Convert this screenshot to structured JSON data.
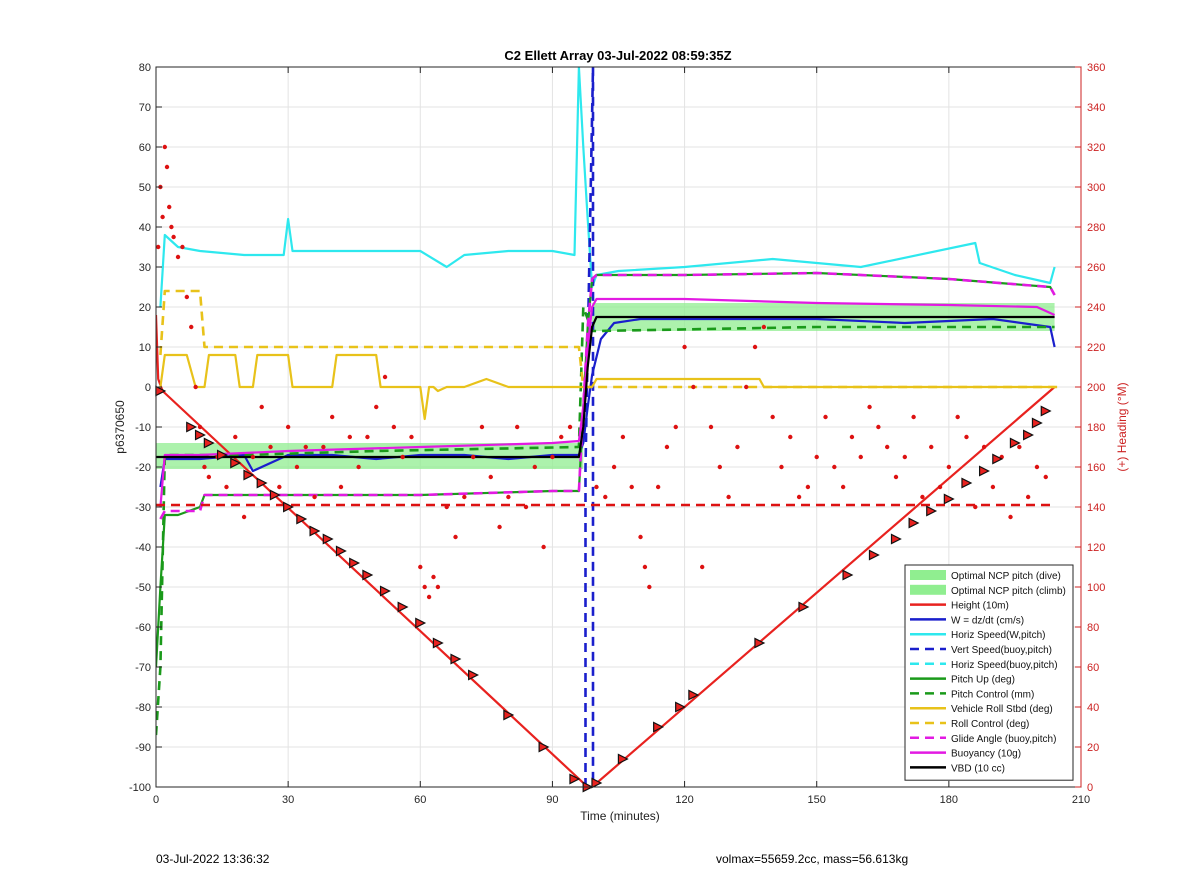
{
  "footer": {
    "timestamp": "03-Jul-2022 13:36:32",
    "stats": "volmax=55659.2cc, mass=56.613kg"
  },
  "chart_data": {
    "type": "line",
    "title": "C2 Ellett Array 03-Jul-2022 08:59:35Z",
    "xlabel": "Time (minutes)",
    "ylabel": "p6370650",
    "y2label": "(+) Heading (°M)",
    "xlim": [
      0,
      210
    ],
    "ylim": [
      -100,
      80
    ],
    "y2lim": [
      0,
      360
    ],
    "xticks": [
      0,
      30,
      60,
      90,
      120,
      150,
      180,
      210
    ],
    "yticks": [
      -100,
      -90,
      -80,
      -70,
      -60,
      -50,
      -40,
      -30,
      -20,
      -10,
      0,
      10,
      20,
      30,
      40,
      50,
      60,
      70,
      80
    ],
    "y2ticks": [
      0,
      20,
      40,
      60,
      80,
      100,
      120,
      140,
      160,
      180,
      200,
      220,
      240,
      260,
      280,
      300,
      320,
      340,
      360
    ],
    "grid": true,
    "legend_position": "bottom-right",
    "colors": {
      "height": "#e8221f",
      "w": "#1a1fcc",
      "horiz": "#2ee8ee",
      "vert": "#1a1fcc",
      "pitch": "#1a9a1a",
      "roll": "#e8c21a",
      "glide": "#e21ae2",
      "buoy": "#e21ae2",
      "vbd": "#000000",
      "heading": "#dd1111",
      "ncp": "#90ee90",
      "right_axis": "#cc2222"
    },
    "series": [
      {
        "name": "Optimal NCP pitch (dive)",
        "style": "band",
        "color": "#90ee90",
        "x": [
          0,
          97
        ],
        "y_low": [
          -20.5,
          -20.5
        ],
        "y_high": [
          -14,
          -14
        ]
      },
      {
        "name": "Optimal NCP pitch (climb)",
        "style": "band",
        "color": "#90ee90",
        "x": [
          99,
          204
        ],
        "y_low": [
          14,
          14
        ],
        "y_high": [
          21,
          21
        ]
      },
      {
        "name": "Height (10m)",
        "style": "solid",
        "color": "#e8221f",
        "x": [
          0,
          0.5,
          1.5,
          98,
          99,
          204
        ],
        "y": [
          18,
          2,
          -1,
          -100,
          -100,
          0
        ]
      },
      {
        "name": "W = dz/dt (cm/s)",
        "style": "solid",
        "color": "#1a1fcc",
        "x": [
          1,
          2,
          5,
          10,
          20,
          22,
          30,
          40,
          50,
          60,
          70,
          80,
          90,
          96,
          97,
          98,
          99,
          101,
          104,
          110,
          130,
          150,
          170,
          190,
          203,
          204
        ],
        "y": [
          -25,
          -18,
          -18,
          -18,
          -17,
          -21,
          -17,
          -17,
          -18,
          -17,
          -17,
          -18,
          -17,
          -17,
          -14,
          -5,
          3,
          12,
          16,
          17,
          17,
          17,
          16,
          17,
          15,
          10
        ]
      },
      {
        "name": "Horiz Speed(W,pitch)",
        "style": "solid",
        "color": "#2ee8ee",
        "x": [
          1,
          2,
          5,
          10,
          20,
          29,
          30,
          31,
          40,
          50,
          60,
          66,
          70,
          80,
          90,
          95,
          96,
          97,
          98,
          99,
          100,
          105,
          120,
          140,
          160,
          186,
          187,
          195,
          203,
          204
        ],
        "y": [
          20,
          38,
          35,
          34,
          33,
          33,
          42,
          34,
          34,
          34,
          34,
          30,
          33,
          34,
          34,
          33,
          80,
          60,
          42,
          25,
          28,
          29,
          30,
          32,
          30,
          36,
          31,
          28,
          26,
          30
        ]
      },
      {
        "name": "Vert Speed(buoy,pitch)",
        "style": "dashed",
        "color": "#1a1fcc",
        "x": [
          97.5,
          97.5,
          99.2,
          99.2
        ],
        "y": [
          -100,
          -20,
          80,
          -100
        ]
      },
      {
        "name": "Horiz Speed(buoy,pitch)",
        "style": "dashed",
        "color": "#2ee8ee",
        "x": [],
        "y": []
      },
      {
        "name": "Pitch Up (deg)",
        "style": "solid",
        "color": "#1a9a1a",
        "x": [
          0,
          1,
          2,
          5,
          10,
          11,
          30,
          60,
          90,
          96,
          97,
          98,
          99,
          100,
          120,
          150,
          180,
          203,
          204
        ],
        "y": [
          -70,
          -50,
          -32,
          -32,
          -30,
          -27,
          -27,
          -27,
          -26,
          -26,
          -5,
          15,
          27,
          28,
          28,
          28.5,
          27,
          25,
          23
        ]
      },
      {
        "name": "Pitch Control (mm)",
        "style": "dashed",
        "color": "#1a9a1a",
        "x": [
          0,
          1,
          2,
          20,
          50,
          96,
          97,
          99,
          100,
          150,
          204
        ],
        "y": [
          -87,
          -70,
          -17,
          -17,
          -16,
          -15,
          20,
          14,
          14,
          15,
          15
        ]
      },
      {
        "name": "Vehicle Roll Stbd (deg)",
        "style": "solid",
        "color": "#e8c21a",
        "x": [
          1,
          2,
          7,
          9,
          11,
          12,
          18,
          19,
          22,
          23,
          30,
          31,
          40,
          41,
          50,
          51,
          55,
          60,
          61,
          62,
          63,
          64,
          66,
          70,
          75,
          80,
          90,
          95,
          97,
          99,
          100,
          110,
          120,
          137,
          138,
          150,
          170,
          204
        ],
        "y": [
          0,
          8,
          8,
          0,
          0,
          8,
          8,
          0,
          0,
          8,
          8,
          0,
          0,
          8,
          8,
          0,
          0,
          0,
          -8,
          0,
          0,
          -1,
          0,
          0,
          2,
          0,
          0,
          0,
          0,
          0,
          2,
          2,
          2,
          2,
          0,
          0,
          0,
          0
        ]
      },
      {
        "name": "Roll Control (deg)",
        "style": "dashed",
        "color": "#e8c21a",
        "x": [
          1,
          2,
          5,
          10,
          11,
          96,
          97,
          110,
          111,
          205
        ],
        "y": [
          8,
          24,
          24,
          24,
          10,
          10,
          0,
          0,
          0,
          0
        ]
      },
      {
        "name": "Glide Angle (buoy,pitch)",
        "style": "dashed",
        "color": "#e21ae2",
        "x": [
          1,
          2,
          5,
          10,
          11,
          30,
          60,
          90,
          96,
          97,
          98,
          99,
          100,
          120,
          150,
          180,
          203,
          204
        ],
        "y": [
          -33,
          -31,
          -31,
          -31,
          -27,
          -27,
          -27,
          -26,
          -26,
          -5,
          15,
          27,
          28,
          28,
          28.5,
          27,
          25,
          23
        ]
      },
      {
        "name": "Buoyancy (10g)",
        "style": "solid",
        "color": "#e21ae2",
        "x": [
          1,
          2,
          10,
          30,
          60,
          90,
          96,
          97,
          98,
          99,
          100,
          120,
          150,
          180,
          200,
          204
        ],
        "y": [
          -30,
          -17,
          -17,
          -16,
          -15,
          -14,
          -13.5,
          -5,
          10,
          20,
          22,
          22,
          21,
          20.5,
          20,
          18
        ]
      },
      {
        "name": "VBD (10 cc)",
        "style": "solid",
        "color": "#000000",
        "x": [
          0,
          1.5,
          1.5,
          96,
          97,
          98,
          99,
          100,
          204
        ],
        "y": [
          -17.5,
          -17.5,
          -17.5,
          -17.5,
          -10,
          5,
          15,
          17.5,
          17.5
        ]
      }
    ],
    "legend_entries": [
      "Optimal NCP pitch (dive)",
      "Optimal NCP pitch (climb)",
      "Height (10m)",
      "W = dz/dt (cm/s)",
      "Horiz Speed(W,pitch)",
      "Vert Speed(buoy,pitch)",
      "Horiz Speed(buoy,pitch)",
      "Pitch Up (deg)",
      "Pitch Control (mm)",
      "Vehicle Roll Stbd (deg)",
      "Roll Control (deg)",
      "Glide Angle (buoy,pitch)",
      "Buoyancy (10g)",
      "VBD (10 cc)"
    ],
    "heading_points": {
      "axis": "right",
      "color": "#dd1111",
      "reference_line": 141,
      "x": [
        0.5,
        1,
        1.5,
        2,
        2.5,
        3,
        3.5,
        4,
        5,
        6,
        7,
        8,
        9,
        10,
        11,
        12,
        14,
        16,
        18,
        20,
        22,
        24,
        26,
        28,
        30,
        32,
        34,
        36,
        38,
        40,
        42,
        44,
        46,
        48,
        50,
        52,
        54,
        56,
        58,
        60,
        61,
        62,
        63,
        64,
        66,
        68,
        70,
        72,
        74,
        76,
        78,
        80,
        82,
        84,
        86,
        88,
        90,
        92,
        94,
        100,
        102,
        104,
        106,
        108,
        110,
        111,
        112,
        114,
        116,
        118,
        120,
        122,
        124,
        126,
        128,
        130,
        132,
        134,
        136,
        138,
        140,
        142,
        144,
        146,
        148,
        150,
        152,
        154,
        156,
        158,
        160,
        162,
        164,
        166,
        168,
        170,
        172,
        174,
        176,
        178,
        180,
        182,
        184,
        186,
        188,
        190,
        192,
        194,
        196,
        198,
        200,
        202
      ],
      "y": [
        270,
        300,
        285,
        320,
        310,
        290,
        280,
        275,
        265,
        270,
        245,
        230,
        200,
        180,
        160,
        155,
        165,
        150,
        175,
        135,
        165,
        190,
        170,
        150,
        180,
        160,
        170,
        145,
        170,
        185,
        150,
        175,
        160,
        175,
        190,
        205,
        180,
        165,
        175,
        110,
        100,
        95,
        105,
        100,
        140,
        125,
        145,
        165,
        180,
        155,
        130,
        145,
        180,
        140,
        160,
        120,
        165,
        175,
        180,
        150,
        145,
        160,
        175,
        150,
        125,
        110,
        100,
        150,
        170,
        180,
        220,
        200,
        110,
        180,
        160,
        145,
        170,
        200,
        220,
        230,
        185,
        160,
        175,
        145,
        150,
        165,
        185,
        160,
        150,
        175,
        165,
        190,
        180,
        170,
        155,
        165,
        185,
        145,
        170,
        150,
        160,
        185,
        175,
        140,
        170,
        150,
        165,
        135,
        170,
        145,
        160,
        155
      ]
    },
    "profile_markers": {
      "x": [
        1,
        8,
        10,
        12,
        15,
        18,
        21,
        24,
        27,
        30,
        33,
        36,
        39,
        42,
        45,
        48,
        52,
        56,
        60,
        64,
        68,
        72,
        80,
        88,
        95,
        98,
        100,
        106,
        114,
        119,
        122,
        137,
        147,
        157,
        163,
        168,
        172,
        176,
        180,
        184,
        188,
        191,
        195,
        198,
        200,
        202
      ],
      "y": [
        -1,
        -10,
        -12,
        -14,
        -17,
        -19,
        -22,
        -24,
        -27,
        -30,
        -33,
        -36,
        -38,
        -41,
        -44,
        -47,
        -51,
        -55,
        -59,
        -64,
        -68,
        -72,
        -82,
        -90,
        -98,
        -100,
        -99,
        -93,
        -85,
        -80,
        -77,
        -64,
        -55,
        -47,
        -42,
        -38,
        -34,
        -31,
        -28,
        -24,
        -21,
        -18,
        -14,
        -12,
        -9,
        -6
      ]
    }
  }
}
